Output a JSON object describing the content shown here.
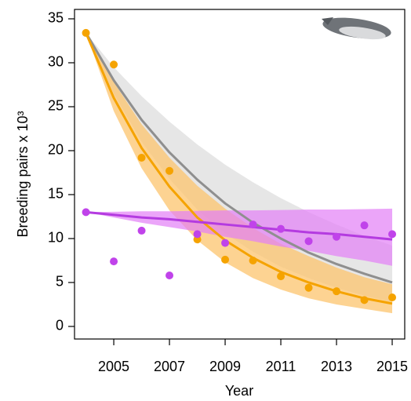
{
  "chart_data": {
    "type": "scatter-fit",
    "xlabel": "Year",
    "ylabel": "Breeding pairs x 10³",
    "x": [
      2004,
      2005,
      2006,
      2007,
      2008,
      2009,
      2010,
      2011,
      2012,
      2013,
      2014,
      2015
    ],
    "xlim": [
      2003.59,
      2015.45
    ],
    "xticks": [
      2005,
      2007,
      2009,
      2011,
      2013,
      2015
    ],
    "ylim": [
      -1.43,
      36.07
    ],
    "yticks": [
      0,
      5,
      10,
      15,
      20,
      25,
      30,
      35
    ],
    "bands": [
      {
        "color": "#e3e3e3",
        "opacity": 0.9,
        "lower": [
          33.4,
          26.5,
          21.0,
          16.8,
          13.3,
          10.6,
          8.5,
          6.8,
          5.5,
          4.4,
          3.5,
          2.8
        ],
        "upper": [
          33.4,
          29.5,
          26.2,
          23.3,
          20.7,
          18.4,
          16.4,
          14.6,
          13.0,
          11.6,
          10.3,
          9.2
        ]
      },
      {
        "color": "#fcc46e",
        "opacity": 0.75,
        "lower": [
          33.4,
          24.5,
          18.0,
          13.2,
          9.8,
          7.3,
          5.5,
          4.2,
          3.2,
          2.5,
          2.0,
          1.5
        ],
        "upper": [
          33.4,
          27.8,
          23.0,
          19.2,
          16.0,
          13.4,
          11.2,
          9.4,
          8.0,
          6.7,
          5.6,
          4.8
        ]
      },
      {
        "color": "#e27ff7",
        "opacity": 0.7,
        "lower": [
          13.0,
          12.4,
          11.8,
          11.3,
          10.8,
          10.2,
          9.7,
          9.1,
          8.6,
          8.0,
          7.5,
          6.9
        ],
        "upper": [
          13.0,
          13.05,
          13.1,
          13.1,
          13.15,
          13.2,
          13.2,
          13.25,
          13.3,
          13.3,
          13.35,
          13.4
        ]
      }
    ],
    "fits": [
      {
        "color": "#8f8f8f",
        "values": [
          33.4,
          28.0,
          23.5,
          19.8,
          16.7,
          14.0,
          11.8,
          10.0,
          8.4,
          7.1,
          6.0,
          5.0
        ]
      },
      {
        "color": "#f5a300",
        "values": [
          33.4,
          26.0,
          20.3,
          15.9,
          12.4,
          9.8,
          7.8,
          6.2,
          5.0,
          4.0,
          3.2,
          2.6
        ]
      },
      {
        "color": "#b43be0",
        "values": [
          13.0,
          12.7,
          12.4,
          12.2,
          11.9,
          11.6,
          11.3,
          11.0,
          10.7,
          10.5,
          10.2,
          9.9
        ]
      }
    ],
    "series": [
      {
        "color": "#f5a300",
        "values": [
          33.4,
          29.8,
          19.2,
          17.7,
          9.9,
          7.6,
          7.5,
          5.7,
          4.4,
          4.0,
          3.0,
          3.3
        ]
      },
      {
        "color": "#c043ea",
        "values": [
          13.0,
          7.4,
          10.9,
          5.8,
          10.5,
          9.5,
          11.6,
          11.1,
          9.7,
          10.2,
          11.5,
          10.5
        ]
      }
    ]
  }
}
